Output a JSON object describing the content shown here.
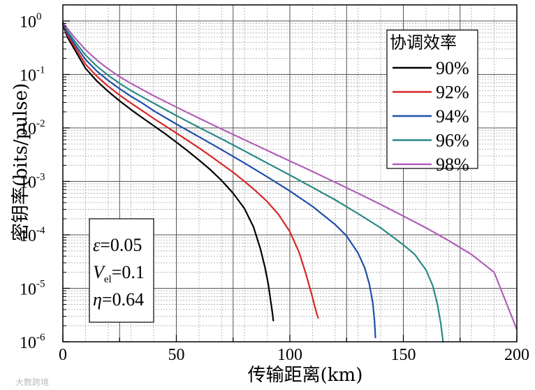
{
  "chart_data": {
    "type": "line",
    "xlabel": "传输距离(km)",
    "ylabel": "密钥率(bits/pulse)",
    "xlim": [
      0,
      200
    ],
    "ylim": [
      1e-06,
      2
    ],
    "yscale": "log",
    "grid": true,
    "x_ticks": [
      "0",
      "50",
      "100",
      "150",
      "200"
    ],
    "y_ticks": [
      {
        "base": "10",
        "exp": "0"
      },
      {
        "base": "10",
        "exp": "-1"
      },
      {
        "base": "10",
        "exp": "-2"
      },
      {
        "base": "10",
        "exp": "-3"
      },
      {
        "base": "10",
        "exp": "-4"
      },
      {
        "base": "10",
        "exp": "-5"
      },
      {
        "base": "10",
        "exp": "-6"
      }
    ],
    "legend": {
      "title": "协调效率",
      "placement": "top-right"
    },
    "series": [
      {
        "name": "90%",
        "color": "#000000",
        "points": [
          [
            0,
            0.85
          ],
          [
            2,
            0.5
          ],
          [
            5,
            0.3
          ],
          [
            10,
            0.13
          ],
          [
            15,
            0.075
          ],
          [
            20,
            0.048
          ],
          [
            25,
            0.032
          ],
          [
            30,
            0.022
          ],
          [
            35,
            0.0155
          ],
          [
            40,
            0.011
          ],
          [
            45,
            0.0078
          ],
          [
            50,
            0.0054
          ],
          [
            55,
            0.0037
          ],
          [
            60,
            0.0025
          ],
          [
            65,
            0.00165
          ],
          [
            70,
            0.00103
          ],
          [
            75,
            0.0006
          ],
          [
            80,
            0.00031
          ],
          [
            84,
            0.00014
          ],
          [
            87,
            5.5e-05
          ],
          [
            89,
            2.5e-05
          ],
          [
            90.5,
            1.2e-05
          ],
          [
            91.5,
            6e-06
          ],
          [
            92.3,
            3.5e-06
          ],
          [
            92.7,
            2.5e-06
          ]
        ]
      },
      {
        "name": "92%",
        "color": "#d62728",
        "points": [
          [
            0,
            0.88
          ],
          [
            2,
            0.55
          ],
          [
            5,
            0.34
          ],
          [
            10,
            0.155
          ],
          [
            15,
            0.092
          ],
          [
            20,
            0.06
          ],
          [
            25,
            0.041
          ],
          [
            30,
            0.029
          ],
          [
            35,
            0.021
          ],
          [
            40,
            0.015
          ],
          [
            45,
            0.011
          ],
          [
            50,
            0.008
          ],
          [
            55,
            0.0058
          ],
          [
            60,
            0.0042
          ],
          [
            65,
            0.003
          ],
          [
            70,
            0.0021
          ],
          [
            75,
            0.00148
          ],
          [
            80,
            0.001
          ],
          [
            85,
            0.00066
          ],
          [
            90,
            0.00042
          ],
          [
            95,
            0.00024
          ],
          [
            100,
            0.000115
          ],
          [
            104,
            4.8e-05
          ],
          [
            107,
            1.9e-05
          ],
          [
            109.5,
            8e-06
          ],
          [
            111,
            4.5e-06
          ],
          [
            112,
            3.2e-06
          ],
          [
            112.5,
            2.8e-06
          ]
        ]
      },
      {
        "name": "94%",
        "color": "#1f4fa8",
        "points": [
          [
            0,
            0.9
          ],
          [
            2,
            0.6
          ],
          [
            5,
            0.38
          ],
          [
            10,
            0.19
          ],
          [
            15,
            0.115
          ],
          [
            20,
            0.077
          ],
          [
            25,
            0.054
          ],
          [
            30,
            0.039
          ],
          [
            35,
            0.029
          ],
          [
            40,
            0.021
          ],
          [
            50,
            0.0118
          ],
          [
            60,
            0.0068
          ],
          [
            70,
            0.0039
          ],
          [
            80,
            0.0022
          ],
          [
            90,
            0.00122
          ],
          [
            100,
            0.00066
          ],
          [
            110,
            0.00034
          ],
          [
            120,
            0.000155
          ],
          [
            125,
            9.5e-05
          ],
          [
            130,
            4.6e-05
          ],
          [
            133,
            2.4e-05
          ],
          [
            135,
            1.2e-05
          ],
          [
            136.5,
            5.5e-06
          ],
          [
            137.3,
            2.5e-06
          ],
          [
            137.7,
            1.2e-06
          ]
        ]
      },
      {
        "name": "96%",
        "color": "#2a8a84",
        "points": [
          [
            0,
            0.92
          ],
          [
            2,
            0.65
          ],
          [
            5,
            0.43
          ],
          [
            10,
            0.23
          ],
          [
            15,
            0.142
          ],
          [
            20,
            0.096
          ],
          [
            25,
            0.068
          ],
          [
            30,
            0.05
          ],
          [
            35,
            0.038
          ],
          [
            40,
            0.029
          ],
          [
            50,
            0.017
          ],
          [
            60,
            0.0102
          ],
          [
            70,
            0.0062
          ],
          [
            80,
            0.0037
          ],
          [
            90,
            0.0022
          ],
          [
            100,
            0.00131
          ],
          [
            110,
            0.00077
          ],
          [
            120,
            0.00045
          ],
          [
            130,
            0.00025
          ],
          [
            140,
            0.000135
          ],
          [
            150,
            6.5e-05
          ],
          [
            155,
            4.3e-05
          ],
          [
            160,
            2.2e-05
          ],
          [
            163,
            1.1e-05
          ],
          [
            165,
            5e-06
          ],
          [
            166.5,
            2.2e-06
          ],
          [
            167.5,
            1e-06
          ]
        ]
      },
      {
        "name": "98%",
        "color": "#b060b8",
        "points": [
          [
            0,
            0.95
          ],
          [
            2,
            0.72
          ],
          [
            5,
            0.5
          ],
          [
            10,
            0.29
          ],
          [
            15,
            0.185
          ],
          [
            20,
            0.127
          ],
          [
            25,
            0.091
          ],
          [
            30,
            0.068
          ],
          [
            35,
            0.052
          ],
          [
            40,
            0.04
          ],
          [
            50,
            0.0245
          ],
          [
            60,
            0.0152
          ],
          [
            70,
            0.0095
          ],
          [
            80,
            0.006
          ],
          [
            90,
            0.0038
          ],
          [
            100,
            0.0024
          ],
          [
            110,
            0.00153
          ],
          [
            120,
            0.00096
          ],
          [
            130,
            0.0006
          ],
          [
            140,
            0.00037
          ],
          [
            150,
            0.000225
          ],
          [
            160,
            0.000135
          ],
          [
            170,
            7.8e-05
          ],
          [
            180,
            4.3e-05
          ],
          [
            190,
            2e-05
          ],
          [
            200,
            1.7e-06
          ]
        ]
      }
    ]
  },
  "params": {
    "epsilon": {
      "symbol": "ε",
      "value": "=0.05"
    },
    "v_el": {
      "symbol": "V",
      "sub": "el",
      "value": "=0.1"
    },
    "eta": {
      "symbol": "η",
      "value": "=0.64"
    }
  },
  "watermark": "大数跨境"
}
